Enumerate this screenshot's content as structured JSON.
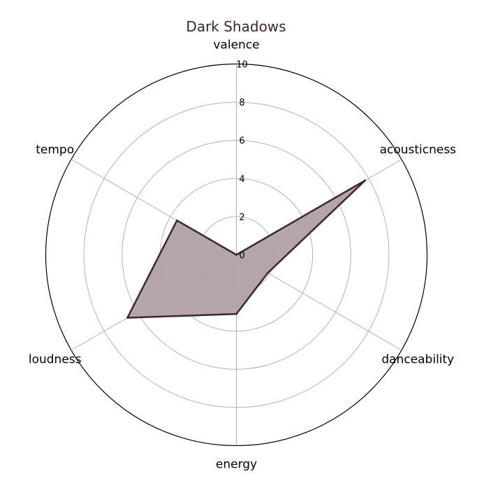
{
  "chart_data": {
    "type": "radar",
    "title": "Dark Shadows",
    "axes": [
      "valence",
      "acousticness",
      "danceability",
      "energy",
      "loudness",
      "tempo"
    ],
    "series": [
      {
        "values": [
          0.0,
          7.8,
          1.9,
          3.1,
          6.6,
          3.6
        ]
      }
    ],
    "r_range": [
      0,
      10
    ],
    "r_ticks": [
      "0",
      "2",
      "4",
      "6",
      "8",
      "10"
    ],
    "grid": true,
    "colors": {
      "line": "#3e2530",
      "fill": "#b0a0a5",
      "grid": "#b0b0b0",
      "outer": "#000000",
      "title": "#3e2530"
    }
  }
}
